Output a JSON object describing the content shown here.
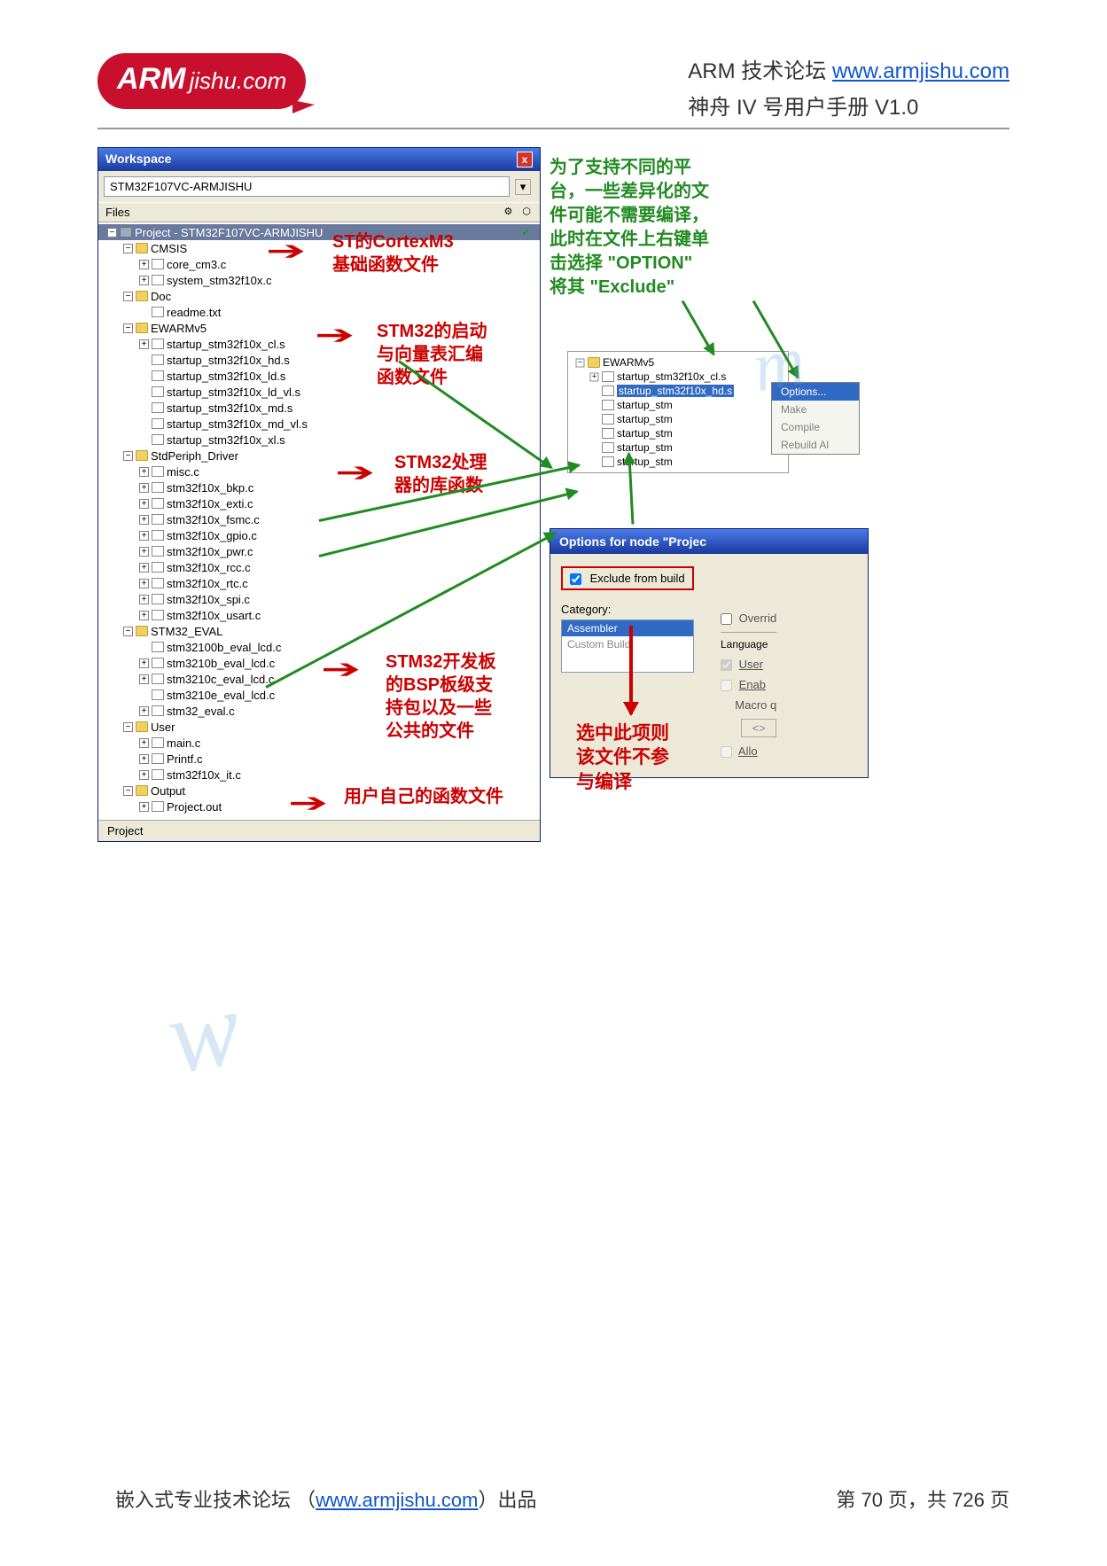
{
  "logo": {
    "arm": "ARM",
    "suffix": "jishu.com"
  },
  "header": {
    "forum_label": "ARM 技术论坛",
    "url": "www.armjishu.com",
    "manual": "神舟 IV 号用户手册  V1.0"
  },
  "workspace": {
    "title": "Workspace",
    "close": "x",
    "config": "STM32F107VC-ARMJISHU",
    "files_label": "Files",
    "header_icons": "⚙ ⬡",
    "tab": "Project",
    "tree": [
      {
        "indent": 0,
        "box": "−",
        "icon": "proj",
        "label": "Project - STM32F107VC-ARMJISHU",
        "root": true,
        "check": "✓"
      },
      {
        "indent": 1,
        "box": "−",
        "icon": "folder",
        "label": "CMSIS"
      },
      {
        "indent": 2,
        "box": "+",
        "icon": "file",
        "label": "core_cm3.c"
      },
      {
        "indent": 2,
        "box": "+",
        "icon": "file",
        "label": "system_stm32f10x.c"
      },
      {
        "indent": 1,
        "box": "−",
        "icon": "folder",
        "label": "Doc"
      },
      {
        "indent": 2,
        "box": "",
        "icon": "file",
        "label": "readme.txt"
      },
      {
        "indent": 1,
        "box": "−",
        "icon": "folder",
        "label": "EWARMv5"
      },
      {
        "indent": 2,
        "box": "+",
        "icon": "file",
        "label": "startup_stm32f10x_cl.s"
      },
      {
        "indent": 2,
        "box": "",
        "icon": "file",
        "label": "startup_stm32f10x_hd.s"
      },
      {
        "indent": 2,
        "box": "",
        "icon": "file",
        "label": "startup_stm32f10x_ld.s"
      },
      {
        "indent": 2,
        "box": "",
        "icon": "file",
        "label": "startup_stm32f10x_ld_vl.s"
      },
      {
        "indent": 2,
        "box": "",
        "icon": "file",
        "label": "startup_stm32f10x_md.s"
      },
      {
        "indent": 2,
        "box": "",
        "icon": "file",
        "label": "startup_stm32f10x_md_vl.s"
      },
      {
        "indent": 2,
        "box": "",
        "icon": "file",
        "label": "startup_stm32f10x_xl.s"
      },
      {
        "indent": 1,
        "box": "−",
        "icon": "folder",
        "label": "StdPeriph_Driver"
      },
      {
        "indent": 2,
        "box": "+",
        "icon": "file",
        "label": "misc.c"
      },
      {
        "indent": 2,
        "box": "+",
        "icon": "file",
        "label": "stm32f10x_bkp.c"
      },
      {
        "indent": 2,
        "box": "+",
        "icon": "file",
        "label": "stm32f10x_exti.c"
      },
      {
        "indent": 2,
        "box": "+",
        "icon": "file",
        "label": "stm32f10x_fsmc.c"
      },
      {
        "indent": 2,
        "box": "+",
        "icon": "file",
        "label": "stm32f10x_gpio.c"
      },
      {
        "indent": 2,
        "box": "+",
        "icon": "file",
        "label": "stm32f10x_pwr.c"
      },
      {
        "indent": 2,
        "box": "+",
        "icon": "file",
        "label": "stm32f10x_rcc.c"
      },
      {
        "indent": 2,
        "box": "+",
        "icon": "file",
        "label": "stm32f10x_rtc.c"
      },
      {
        "indent": 2,
        "box": "+",
        "icon": "file",
        "label": "stm32f10x_spi.c"
      },
      {
        "indent": 2,
        "box": "+",
        "icon": "file",
        "label": "stm32f10x_usart.c"
      },
      {
        "indent": 1,
        "box": "−",
        "icon": "folder",
        "label": "STM32_EVAL"
      },
      {
        "indent": 2,
        "box": "",
        "icon": "file",
        "label": "stm32100b_eval_lcd.c"
      },
      {
        "indent": 2,
        "box": "+",
        "icon": "file",
        "label": "stm3210b_eval_lcd.c"
      },
      {
        "indent": 2,
        "box": "+",
        "icon": "file",
        "label": "stm3210c_eval_lcd.c"
      },
      {
        "indent": 2,
        "box": "",
        "icon": "file",
        "label": "stm3210e_eval_lcd.c"
      },
      {
        "indent": 2,
        "box": "+",
        "icon": "file",
        "label": "stm32_eval.c"
      },
      {
        "indent": 1,
        "box": "−",
        "icon": "folder",
        "label": "User"
      },
      {
        "indent": 2,
        "box": "+",
        "icon": "file",
        "label": "main.c"
      },
      {
        "indent": 2,
        "box": "+",
        "icon": "file",
        "label": "Printf.c"
      },
      {
        "indent": 2,
        "box": "+",
        "icon": "file",
        "label": "stm32f10x_it.c"
      },
      {
        "indent": 1,
        "box": "−",
        "icon": "folder",
        "label": "Output"
      },
      {
        "indent": 2,
        "box": "+",
        "icon": "file",
        "label": "Project.out"
      }
    ]
  },
  "annotations": {
    "a1": "ST的CortexM3\n基础函数文件",
    "a2": "STM32的启动\n与向量表汇编\n函数文件",
    "a3": "STM32处理\n器的库函数",
    "a4": "STM32开发板\n的BSP板级支\n持包以及一些\n公共的文件",
    "a5": "用户自己的函数文件",
    "green_main": "为了支持不同的平\n台，一些差异化的文\n件可能不需要编译，\n此时在文件上右键单\n击选择 \"OPTION\"\n将其 \"Exclude\"",
    "option_word": "OPTION",
    "exclude_word": "Exclude",
    "red_select": "选中此项则\n该文件不参\n与编译"
  },
  "mini_tree": {
    "rows": [
      {
        "box": "−",
        "icon": "folder",
        "label": "EWARMv5"
      },
      {
        "box": "+",
        "icon": "file",
        "label": "startup_stm32f10x_cl.s"
      },
      {
        "box": "",
        "icon": "file",
        "label": "startup_stm32f10x_hd.s",
        "sel": true
      },
      {
        "box": "",
        "icon": "file",
        "label": "startup_stm"
      },
      {
        "box": "",
        "icon": "file",
        "label": "startup_stm"
      },
      {
        "box": "",
        "icon": "file",
        "label": "startup_stm"
      },
      {
        "box": "",
        "icon": "file",
        "label": "startup_stm"
      },
      {
        "box": "",
        "icon": "file",
        "label": "startup_stm"
      }
    ]
  },
  "context_menu": {
    "options": "Options...",
    "make": "Make",
    "compile": "Compile",
    "rebuild": "Rebuild Al"
  },
  "options_panel": {
    "title": "Options for node \"Projec",
    "exclude": "Exclude from build",
    "category": "Category:",
    "override": "Overrid",
    "assembler": "Assembler",
    "custom": "Custom Build",
    "language": "Language",
    "user": "User",
    "enab": "Enab",
    "macro": "Macro q",
    "diamond": "<>",
    "allo": "Allo"
  },
  "footer": {
    "left_pre": "嵌入式专业技术论坛 （",
    "url": "www.armjishu.com",
    "left_post": "）出品",
    "right": "第 70 页，共 726 页"
  },
  "watermark": {
    "w": "w",
    "com": ".com"
  },
  "colors": {
    "brand_red": "#c8102e",
    "anno_red": "#c00",
    "anno_green": "#228B22",
    "titlebar_top": "#4a7ae8",
    "titlebar_bottom": "#1a3a9e",
    "selection": "#316ac5",
    "panel_bg": "#ece9d8"
  }
}
